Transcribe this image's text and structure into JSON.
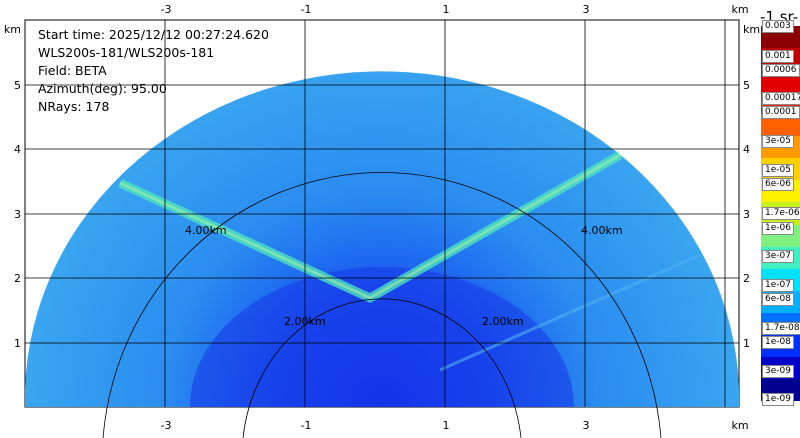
{
  "info": {
    "start_time": "Start time: 2025/12/12 00:27:24.620",
    "instrument": "WLS200s-181/WLS200s-181",
    "field": "Field: BETA",
    "azimuth": "Azimuth(deg): 95.00",
    "nrays": "NRays: 178"
  },
  "axes": {
    "unit": "km",
    "x_ticks": [
      "-3",
      "-1",
      "1",
      "3"
    ],
    "y_ticks": [
      "1",
      "2",
      "3",
      "4",
      "5"
    ],
    "range_rings": [
      "2.00km",
      "2.00km",
      "4.00km",
      "4.00km"
    ]
  },
  "colorbar": {
    "title": "-1 sr-",
    "top_label": "0.003",
    "labels": [
      "0.001",
      "0.0006",
      "0.00017",
      "0.0001",
      "3e-05",
      "1e-05",
      "6e-06",
      "1.7e-06",
      "1e-06",
      "3e-07",
      "1e-07",
      "6e-08",
      "1.7e-08",
      "1e-08",
      "3e-09",
      "1e-09"
    ],
    "colors": [
      "#8b0000",
      "#c00000",
      "#e00000",
      "#ff2000",
      "#ff6000",
      "#ff9a00",
      "#ffd000",
      "#fff000",
      "#c8f020",
      "#80f080",
      "#40f0c0",
      "#00e0ff",
      "#00b0ff",
      "#0070ff",
      "#0030ff",
      "#0000c8",
      "#000090"
    ]
  }
}
